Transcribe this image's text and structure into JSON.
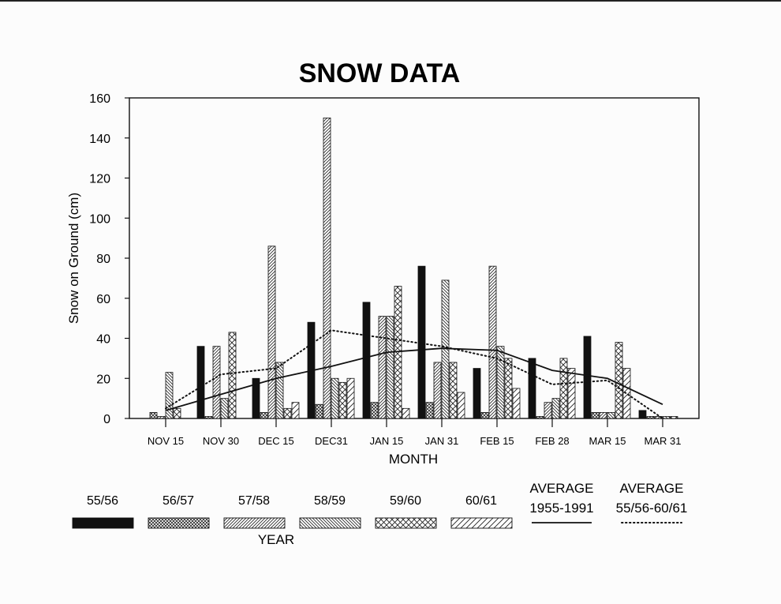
{
  "chart_data": {
    "type": "bar",
    "title": "SNOW DATA",
    "xlabel": "MONTH",
    "ylabel": "Snow on Ground (cm)",
    "ylim": [
      0,
      160
    ],
    "yticks": [
      0,
      20,
      40,
      60,
      80,
      100,
      120,
      140,
      160
    ],
    "categories": [
      "NOV 15",
      "NOV 30",
      "DEC 15",
      "DEC31",
      "JAN 15",
      "JAN 31",
      "FEB 15",
      "FEB 28",
      "MAR 15",
      "MAR 31"
    ],
    "legend_title": "YEAR",
    "grid": false,
    "series": [
      {
        "name": "55/56",
        "pattern": "solid-black",
        "values": [
          0,
          36,
          20,
          48,
          58,
          76,
          25,
          30,
          41,
          4
        ]
      },
      {
        "name": "56/57",
        "pattern": "crosshatch-fine",
        "values": [
          3,
          1,
          3,
          7,
          8,
          8,
          3,
          1,
          3,
          1
        ]
      },
      {
        "name": "57/58",
        "pattern": "diagonal-forward",
        "values": [
          1,
          36,
          86,
          150,
          51,
          28,
          76,
          8,
          3,
          1
        ]
      },
      {
        "name": "58/59",
        "pattern": "diagonal-backward",
        "values": [
          23,
          10,
          28,
          20,
          51,
          69,
          36,
          10,
          3,
          1
        ]
      },
      {
        "name": "59/60",
        "pattern": "crosshatch-coarse",
        "values": [
          5,
          43,
          5,
          18,
          66,
          28,
          30,
          30,
          38,
          1
        ]
      },
      {
        "name": "60/61",
        "pattern": "diagonal-wide",
        "values": [
          0,
          0,
          8,
          20,
          5,
          13,
          15,
          25,
          25,
          0
        ]
      }
    ],
    "lines": [
      {
        "name": "AVERAGE 1955-1991",
        "legend_lines": [
          "AVERAGE",
          "1955-1991"
        ],
        "style": "solid",
        "values": [
          4,
          12,
          20,
          26,
          33,
          35,
          34,
          24,
          20,
          7
        ]
      },
      {
        "name": "AVERAGE 55/56-60/61",
        "legend_lines": [
          "AVERAGE",
          "55/56-60/61"
        ],
        "style": "dotted",
        "values": [
          5,
          22,
          25,
          44,
          40,
          36,
          30,
          17,
          19,
          0
        ]
      }
    ]
  }
}
